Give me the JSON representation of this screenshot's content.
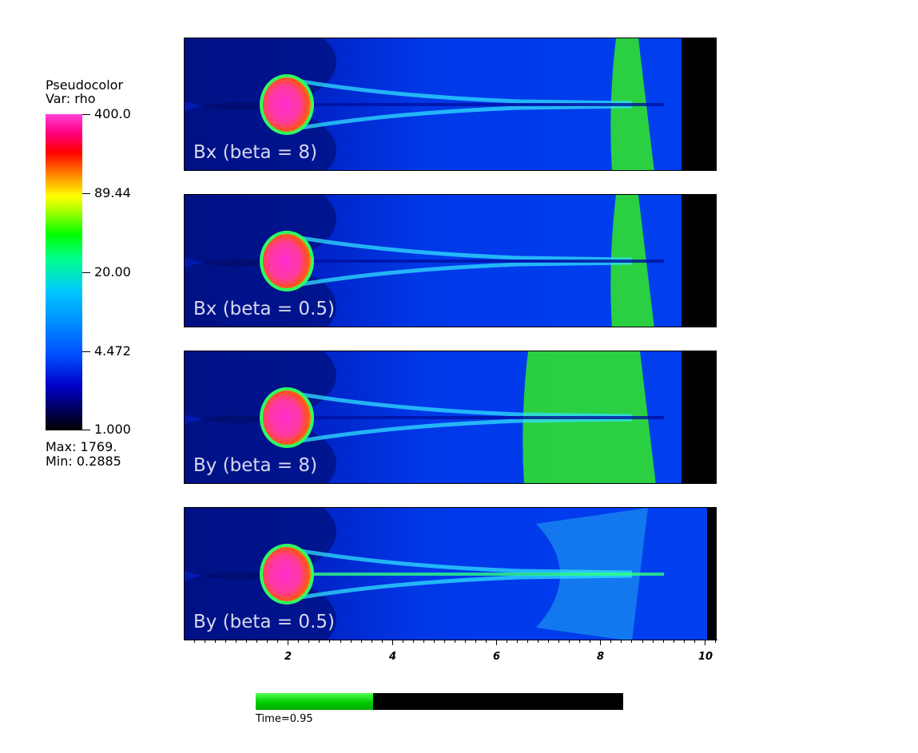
{
  "legend": {
    "title_line1": "Pseudocolor",
    "title_line2": "Var: rho",
    "ticks": [
      "400.0",
      "89.44",
      "20.00",
      "4.472",
      "1.000"
    ],
    "max_label": "Max:  1769.",
    "min_label": "Min:  0.2885"
  },
  "panels": [
    {
      "label": "Bx (beta = 8)"
    },
    {
      "label": "Bx (beta = 0.5)"
    },
    {
      "label": "By (beta = 8)"
    },
    {
      "label": "By (beta = 0.5)"
    }
  ],
  "x_axis": {
    "min": 0,
    "max": 10.25,
    "major_ticks": [
      2,
      4,
      6,
      8,
      10
    ],
    "labels": [
      "2",
      "4",
      "6",
      "8",
      "10"
    ]
  },
  "time": {
    "label": "Time=0.95",
    "progress": 0.32
  },
  "colors": {
    "background_blue": "#0030e0",
    "tail_green": "#20e020",
    "bubble_magenta": "#ff2ccf"
  }
}
